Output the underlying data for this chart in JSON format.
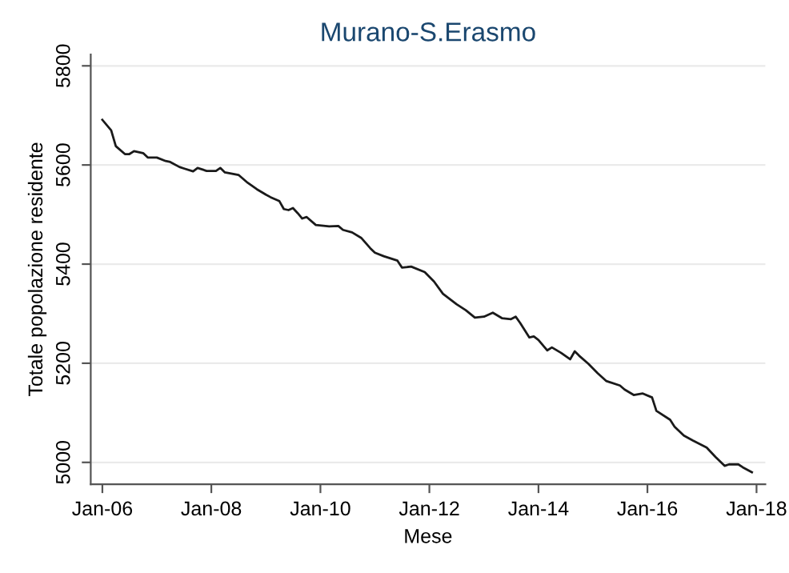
{
  "chart_data": {
    "type": "line",
    "title": "Murano-S.Erasmo",
    "xlabel": "Mese",
    "ylabel": "Totale popolazione residente",
    "x": [
      "2006-01",
      "2006-03",
      "2006-04",
      "2006-06",
      "2006-07",
      "2006-08",
      "2006-10",
      "2006-11",
      "2007-01",
      "2007-03",
      "2007-04",
      "2007-06",
      "2007-07",
      "2007-09",
      "2007-10",
      "2007-12",
      "2008-02",
      "2008-03",
      "2008-04",
      "2008-07",
      "2008-09",
      "2008-11",
      "2009-01",
      "2009-02",
      "2009-04",
      "2009-05",
      "2009-06",
      "2009-07",
      "2009-08",
      "2009-09",
      "2009-10",
      "2009-12",
      "2010-03",
      "2010-05",
      "2010-06",
      "2010-08",
      "2010-10",
      "2010-12",
      "2011-01",
      "2011-03",
      "2011-06",
      "2011-07",
      "2011-09",
      "2011-12",
      "2012-02",
      "2012-04",
      "2012-07",
      "2012-09",
      "2012-11",
      "2013-01",
      "2013-03",
      "2013-05",
      "2013-07",
      "2013-08",
      "2013-09",
      "2013-11",
      "2013-12",
      "2014-01",
      "2014-03",
      "2014-04",
      "2014-06",
      "2014-08",
      "2014-09",
      "2014-10",
      "2014-12",
      "2015-02",
      "2015-04",
      "2015-07",
      "2015-08",
      "2015-10",
      "2015-12",
      "2016-02",
      "2016-03",
      "2016-06",
      "2016-07",
      "2016-09",
      "2016-11",
      "2017-02",
      "2017-04",
      "2017-06",
      "2017-07",
      "2017-09",
      "2017-10",
      "2017-12"
    ],
    "series": [
      {
        "color": "#1a1a1a",
        "values": [
          5691,
          5670,
          5638,
          5622,
          5622,
          5628,
          5624,
          5615,
          5615,
          5608,
          5606,
          5596,
          5593,
          5587,
          5594,
          5588,
          5588,
          5594,
          5585,
          5580,
          5564,
          5551,
          5540,
          5535,
          5527,
          5511,
          5509,
          5513,
          5503,
          5492,
          5495,
          5479,
          5476,
          5477,
          5469,
          5464,
          5453,
          5432,
          5423,
          5416,
          5407,
          5393,
          5395,
          5384,
          5365,
          5340,
          5319,
          5307,
          5292,
          5294,
          5302,
          5291,
          5289,
          5294,
          5281,
          5252,
          5254,
          5247,
          5226,
          5232,
          5221,
          5208,
          5224,
          5215,
          5199,
          5180,
          5164,
          5155,
          5147,
          5136,
          5139,
          5131,
          5104,
          5086,
          5072,
          5054,
          5044,
          5030,
          5011,
          4993,
          4996,
          4996,
          4990,
          4980
        ]
      }
    ],
    "xlim": [
      "2005-10-15",
      "2018-03"
    ],
    "xticks": [
      {
        "value": "2006-01",
        "label": "Jan-06"
      },
      {
        "value": "2008-01",
        "label": "Jan-08"
      },
      {
        "value": "2010-01",
        "label": "Jan-10"
      },
      {
        "value": "2012-01",
        "label": "Jan-12"
      },
      {
        "value": "2014-01",
        "label": "Jan-14"
      },
      {
        "value": "2016-01",
        "label": "Jan-16"
      },
      {
        "value": "2018-01",
        "label": "Jan-18"
      }
    ],
    "ylim": [
      4956,
      5823
    ],
    "yticks": [
      5000,
      5200,
      5400,
      5600,
      5800
    ],
    "grid": "y",
    "legend": false,
    "marker": "none",
    "line_style": "solid"
  }
}
